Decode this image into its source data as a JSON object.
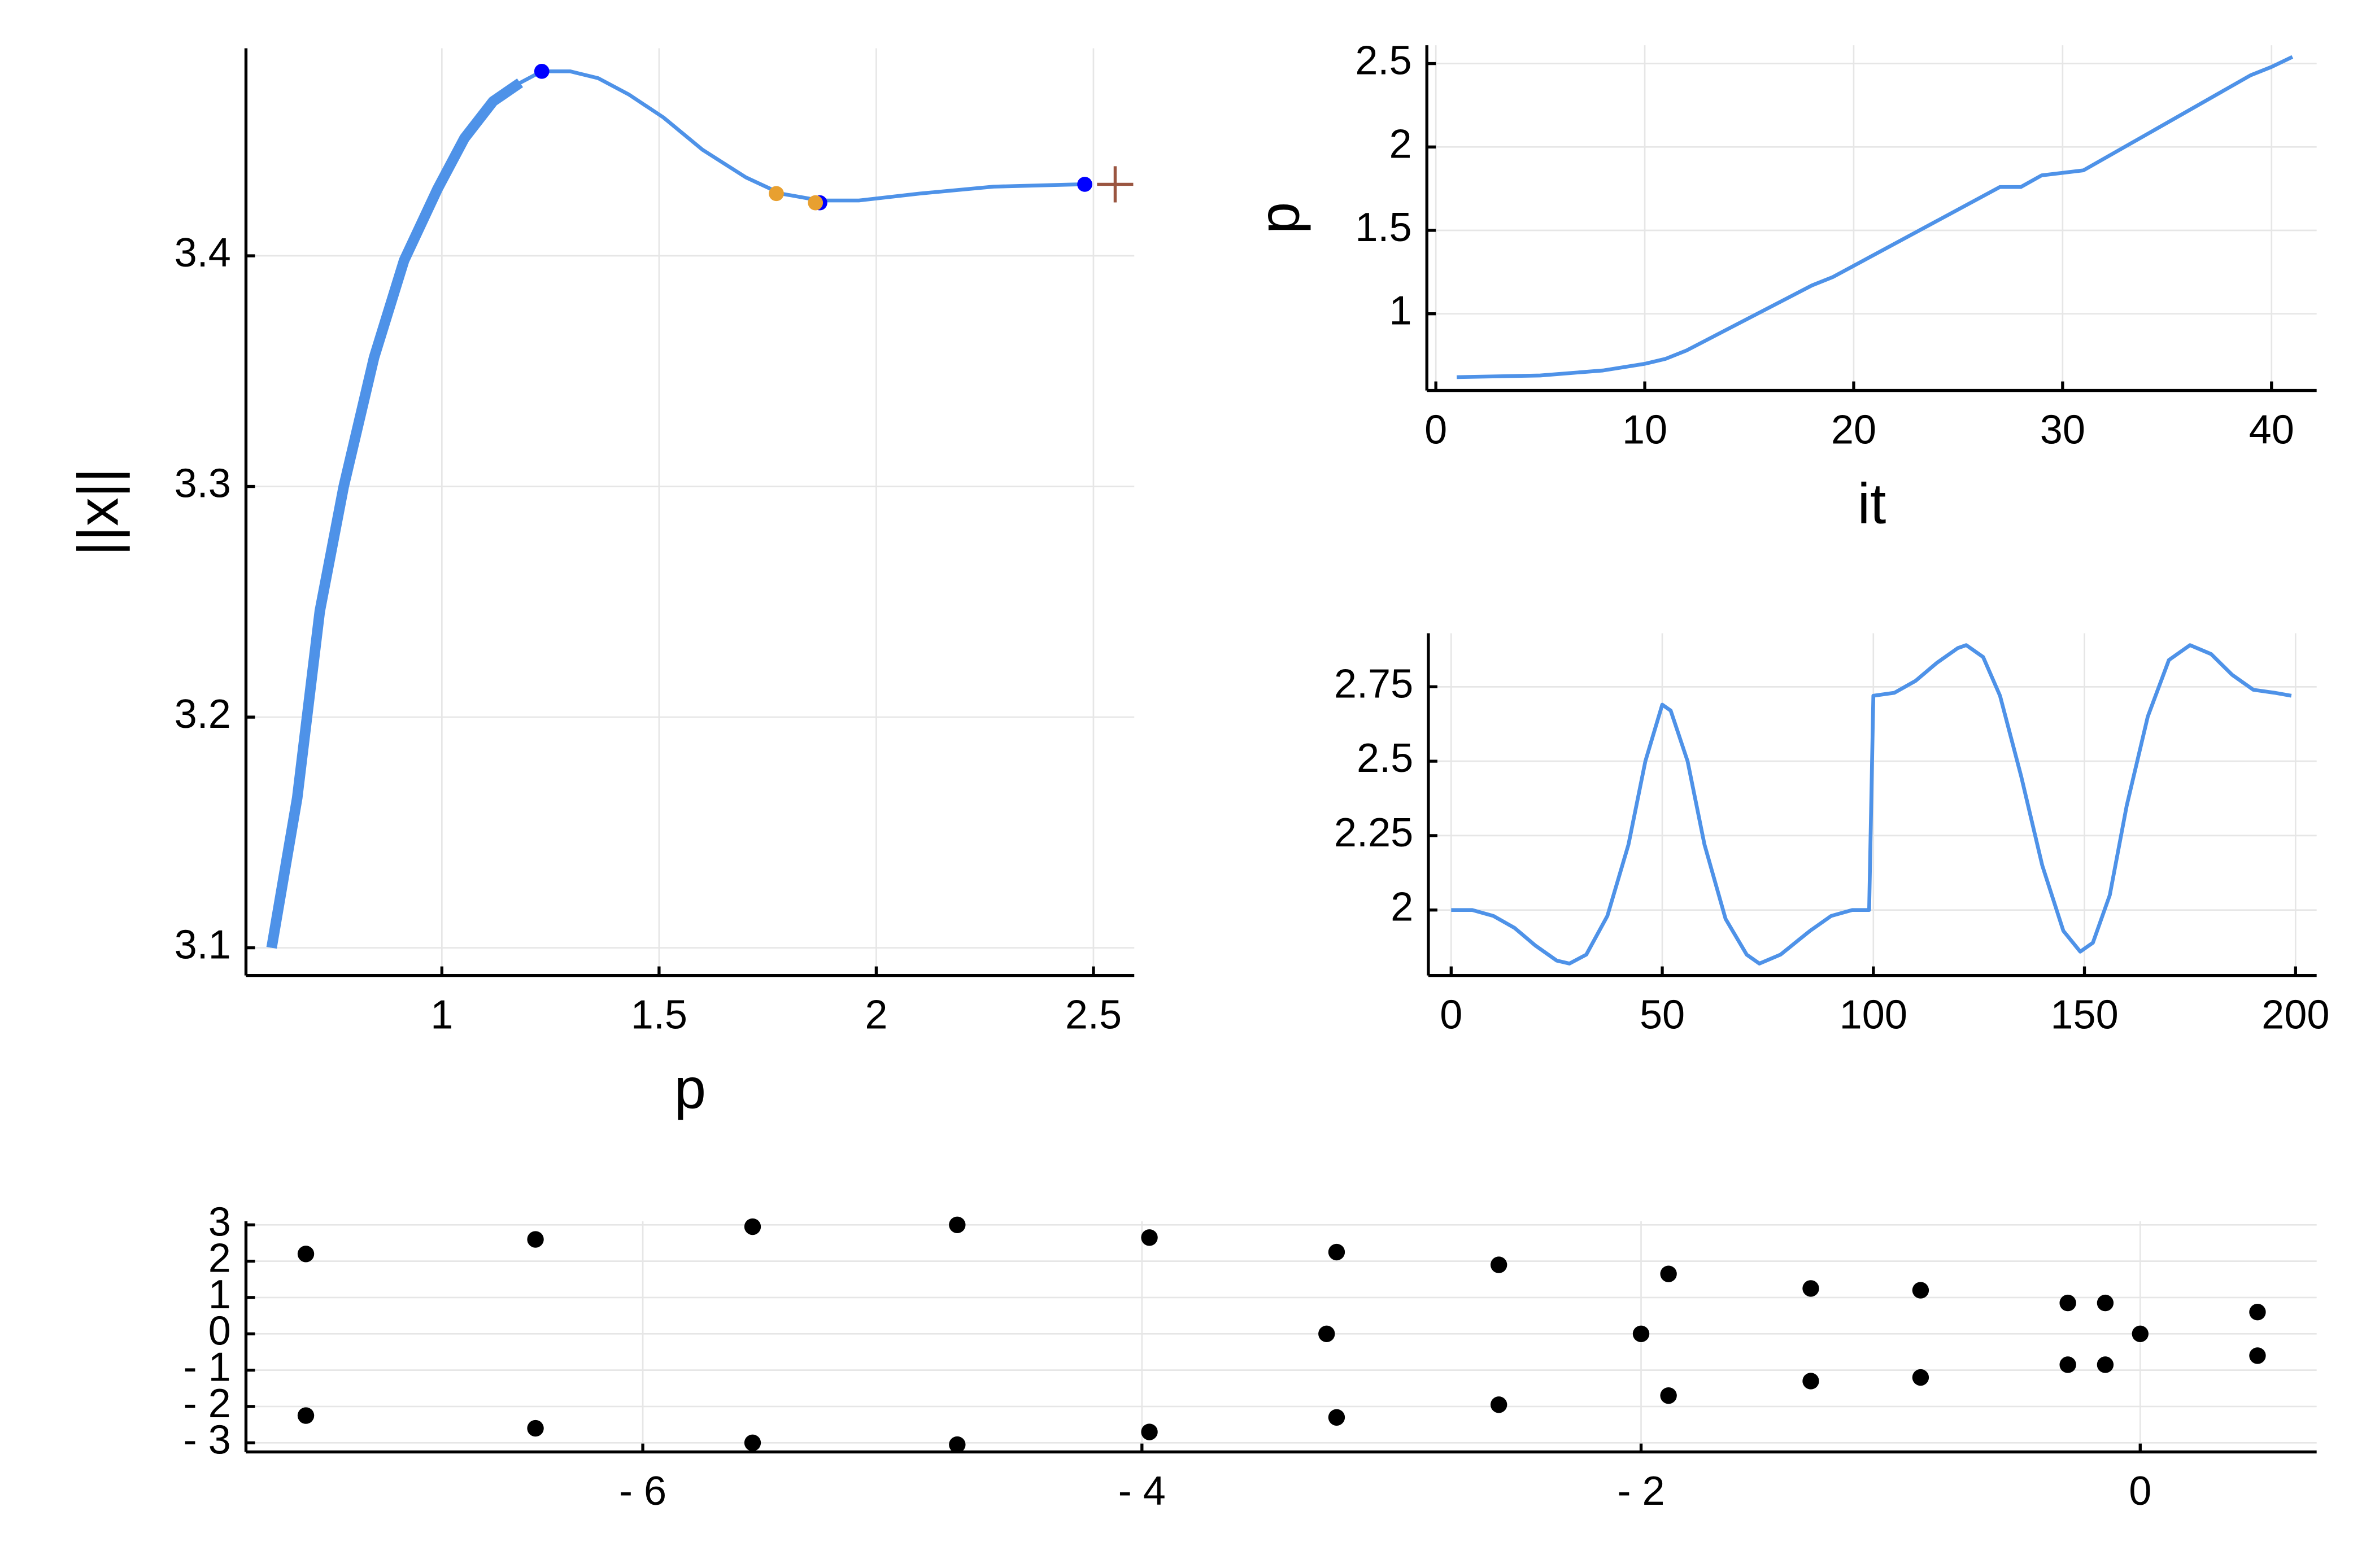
{
  "chart_data": [
    {
      "type": "line",
      "xlabel": "p",
      "ylabel": "||x||",
      "x": [
        0.608,
        0.667,
        0.719,
        0.774,
        0.844,
        0.913,
        0.99,
        1.052,
        1.118,
        1.18,
        1.23,
        1.295,
        1.36,
        1.43,
        1.51,
        1.6,
        1.7,
        1.78,
        1.87,
        1.96,
        2.1,
        2.27,
        2.47
      ],
      "series": [
        {
          "color": "#4e92e8",
          "width": 2.5,
          "values": [
            3.1,
            3.165,
            3.246,
            3.3,
            3.356,
            3.398,
            3.429,
            3.451,
            3.467,
            3.475,
            3.48,
            3.48,
            3.477,
            3.47,
            3.46,
            3.446,
            3.434,
            3.427,
            3.424,
            3.424,
            3.427,
            3.43,
            3.431
          ]
        },
        {
          "color": "#4e92e8",
          "width": 7,
          "values": [
            3.1,
            3.165,
            3.246,
            3.3,
            3.356,
            3.398,
            3.429,
            3.451,
            3.467,
            3.475,
            null,
            null,
            null,
            null,
            null,
            null,
            null,
            null,
            null,
            null,
            null,
            null,
            null
          ]
        }
      ],
      "points": [
        {
          "shape": "circle",
          "color": "#0000ff",
          "x": [
            1.23,
            1.87,
            2.48
          ],
          "values": [
            3.48,
            3.423,
            3.431
          ]
        },
        {
          "shape": "circle",
          "color": "#e8a030",
          "x": [
            1.77,
            1.86
          ],
          "values": [
            3.427,
            3.423
          ]
        },
        {
          "shape": "cross",
          "color": "#9a5540",
          "x": [
            2.55
          ],
          "values": [
            3.431
          ]
        }
      ],
      "xlim": [
        0.549,
        2.594
      ],
      "ylim": [
        3.088,
        3.49
      ],
      "xticks": [
        1.0,
        1.5,
        2.0,
        2.5
      ],
      "yticks": [
        3.1,
        3.2,
        3.3,
        3.4
      ],
      "grid": true
    },
    {
      "type": "line",
      "xlabel": "it",
      "ylabel": "p",
      "x": [
        1,
        5,
        8,
        10,
        11,
        12,
        18,
        19,
        27,
        28,
        29,
        31,
        39,
        40,
        41
      ],
      "series": [
        {
          "color": "#4e92e8",
          "width": 2.5,
          "values": [
            0.62,
            0.63,
            0.66,
            0.7,
            0.73,
            0.78,
            1.17,
            1.22,
            1.76,
            1.76,
            1.83,
            1.86,
            2.43,
            2.48,
            2.54
          ]
        }
      ],
      "xlim": [
        -0.43,
        42.16
      ],
      "ylim": [
        0.54,
        2.61
      ],
      "xticks": [
        0,
        10,
        20,
        30,
        40
      ],
      "yticks": [
        1.0,
        1.5,
        2.0,
        2.5
      ],
      "grid": true
    },
    {
      "type": "line",
      "x": [
        0,
        5,
        10,
        15,
        20,
        25,
        28,
        32,
        37,
        42,
        46,
        50,
        52,
        56,
        60,
        65,
        70,
        73,
        78,
        85,
        90,
        95,
        99,
        100,
        105,
        110,
        115,
        120,
        122,
        126,
        130,
        135,
        140,
        145,
        149,
        152,
        156,
        160,
        165,
        170,
        175,
        180,
        185,
        190,
        195,
        199
      ],
      "series": [
        {
          "color": "#4e92e8",
          "width": 2.5,
          "values": [
            2.0,
            2.0,
            1.98,
            1.94,
            1.88,
            1.83,
            1.82,
            1.85,
            1.98,
            2.22,
            2.5,
            2.69,
            2.67,
            2.5,
            2.22,
            1.97,
            1.85,
            1.82,
            1.85,
            1.93,
            1.98,
            2.0,
            2.0,
            2.72,
            2.73,
            2.77,
            2.83,
            2.88,
            2.89,
            2.85,
            2.72,
            2.45,
            2.15,
            1.93,
            1.86,
            1.89,
            2.05,
            2.35,
            2.65,
            2.84,
            2.89,
            2.86,
            2.79,
            2.74,
            2.73,
            2.72
          ]
        }
      ],
      "xlim": [
        -5.4,
        205
      ],
      "ylim": [
        1.78,
        2.93
      ],
      "xticks": [
        0,
        50,
        100,
        150,
        200
      ],
      "yticks": [
        2.0,
        2.25,
        2.5,
        2.75
      ],
      "grid": true
    },
    {
      "type": "scatter",
      "color": "#000000",
      "x": [
        -7.35,
        -7.35,
        -6.43,
        -6.43,
        -5.56,
        -5.56,
        -4.74,
        -4.74,
        -3.97,
        -3.97,
        -3.26,
        -3.22,
        -3.22,
        -2.57,
        -2.57,
        -2.0,
        -1.89,
        -1.89,
        -1.32,
        -1.32,
        -0.88,
        -0.88,
        -0.29,
        -0.29,
        -0.14,
        -0.14,
        0,
        0.47,
        0.47
      ],
      "values": [
        2.2,
        -2.25,
        2.6,
        -2.6,
        2.95,
        -3.0,
        3.0,
        -3.05,
        2.65,
        -2.7,
        0,
        2.25,
        -2.3,
        1.9,
        -1.95,
        0,
        1.65,
        -1.7,
        1.25,
        -1.3,
        1.2,
        -1.2,
        0.85,
        -0.85,
        0.85,
        -0.85,
        0,
        0.6,
        -0.6
      ],
      "xlim": [
        -7.59,
        0.707
      ],
      "ylim": [
        -3.25,
        3.1
      ],
      "xticks": [
        {
          "value": -6,
          "label": "- 6"
        },
        {
          "value": -4,
          "label": "- 4"
        },
        {
          "value": -2,
          "label": "- 2"
        },
        0
      ],
      "yticks": [
        {
          "value": -3,
          "label": "- 3"
        },
        {
          "value": -2,
          "label": "- 2"
        },
        {
          "value": -1,
          "label": "- 1"
        },
        0,
        1,
        2,
        3
      ],
      "grid": true
    }
  ]
}
